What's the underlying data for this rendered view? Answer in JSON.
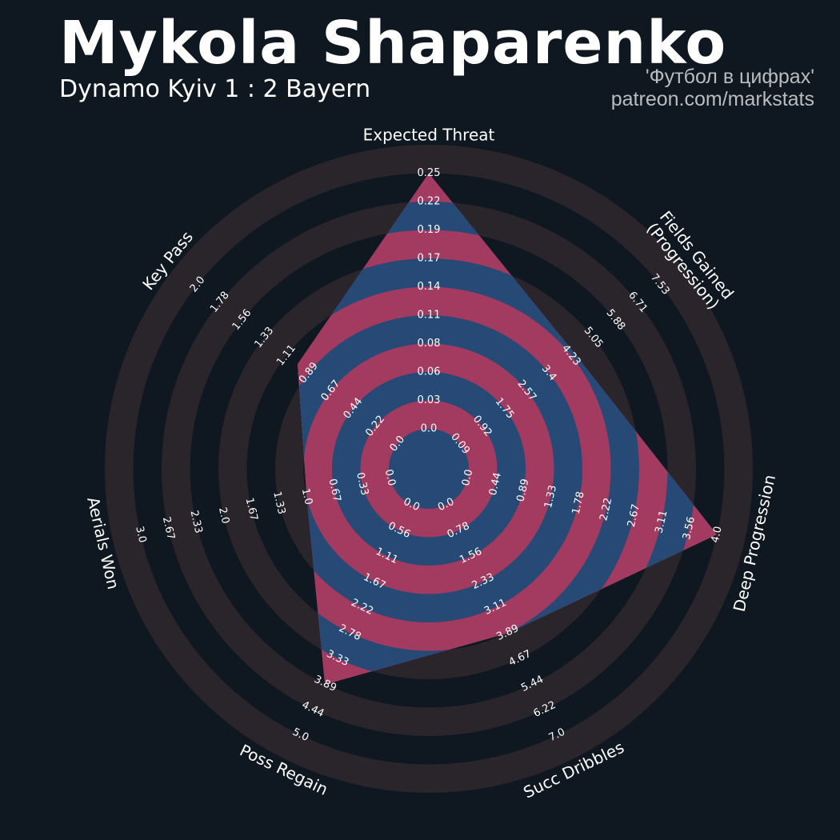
{
  "header": {
    "title": "Mykola Shaparenko",
    "subtitle": "Dynamo Kyiv 1 : 2 Bayern",
    "credit_line1": "'Футбол в цифрах'",
    "credit_line2": "patreon.com/markstats"
  },
  "colors": {
    "background": "#0f1820",
    "ring_band": "#2a252b",
    "player_fill_blue": "#264a75",
    "player_fill_red": "#a33a60",
    "text": "#ffffff",
    "credit_text": "#b9bcc0"
  },
  "chart_data": {
    "type": "radar",
    "title": "Mykola Shaparenko",
    "subtitle": "Dynamo Kyiv 1 : 2 Bayern",
    "axes": [
      {
        "label": "Expected Threat",
        "min": 0.0,
        "max": 0.25,
        "value": 0.25,
        "ticks": [
          "0.0",
          "0.03",
          "0.06",
          "0.08",
          "0.11",
          "0.14",
          "0.17",
          "0.19",
          "0.22",
          "0.25"
        ]
      },
      {
        "label": "Fields Gained\n(Progression)",
        "min": 0.0,
        "max": 7.53,
        "value": 4.3,
        "ticks": [
          "0.09",
          "0.92",
          "1.75",
          "2.57",
          "3.4",
          "4.23",
          "5.05",
          "5.88",
          "6.71",
          "7.53"
        ]
      },
      {
        "label": "Deep Progression",
        "min": 0.0,
        "max": 4.0,
        "value": 4.0,
        "ticks": [
          "0.0",
          "0.44",
          "0.89",
          "1.33",
          "1.78",
          "2.22",
          "2.67",
          "3.11",
          "3.56",
          "4.0"
        ]
      },
      {
        "label": "Succ Dribbles",
        "min": 0.0,
        "max": 7.0,
        "value": 3.9,
        "ticks": [
          "0.0",
          "0.78",
          "1.56",
          "2.33",
          "3.11",
          "3.89",
          "4.67",
          "5.44",
          "6.22",
          "7.0"
        ]
      },
      {
        "label": "Poss Regain",
        "min": 0.0,
        "max": 5.0,
        "value": 3.9,
        "ticks": [
          "0.0",
          "0.56",
          "1.11",
          "1.67",
          "2.22",
          "2.78",
          "3.33",
          "3.89",
          "4.44",
          "5.0"
        ]
      },
      {
        "label": "Aerials Won",
        "min": 0.0,
        "max": 3.0,
        "value": 1.0,
        "ticks": [
          "0.0",
          "0.33",
          "0.67",
          "1.0",
          "1.33",
          "1.67",
          "2.0",
          "2.33",
          "2.67",
          "3.0"
        ]
      },
      {
        "label": "Key Pass",
        "min": 0.0,
        "max": 2.0,
        "value": 1.0,
        "ticks": [
          "0.0",
          "0.22",
          "0.44",
          "0.67",
          "0.89",
          "1.11",
          "1.33",
          "1.56",
          "1.78",
          "2.0"
        ]
      }
    ]
  }
}
